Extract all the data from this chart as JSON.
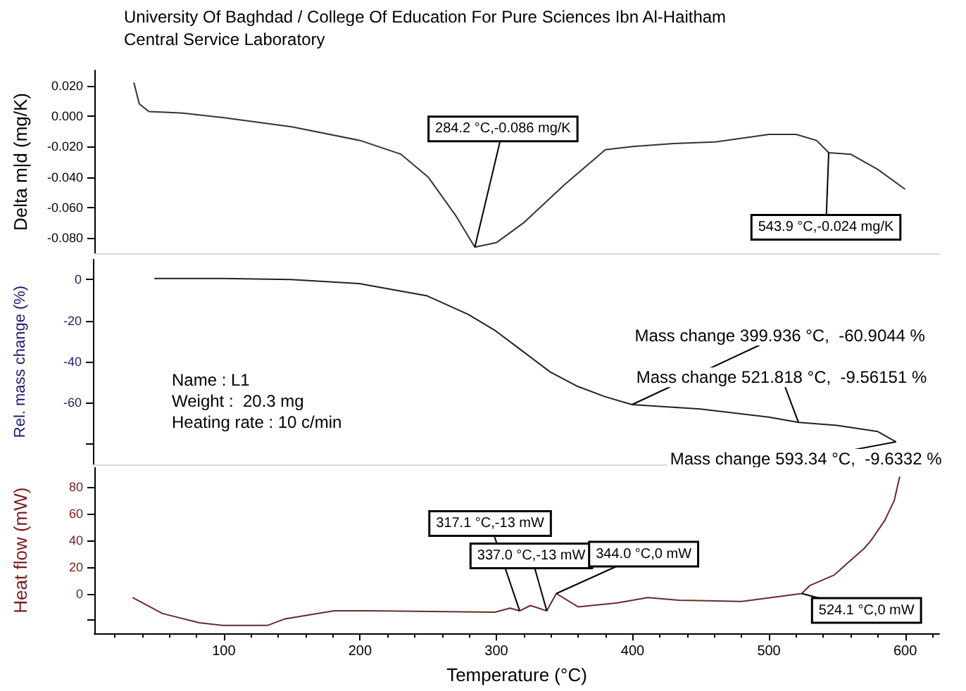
{
  "chart_data": [
    {
      "type": "line",
      "title": "University Of Baghdad / College Of Education For Pure Sciences Ibn Al-Haitham",
      "subtitle": "Central Service Laboratory",
      "ylabel": "Delta m|d (mg/K)",
      "xlim": [
        5,
        625
      ],
      "ylim": [
        -0.09,
        0.03
      ],
      "yticks": [
        {
          "value": 0.02,
          "label": "0.020"
        },
        {
          "value": 0,
          "label": "0.000"
        },
        {
          "value": -0.02,
          "label": "-0.020"
        },
        {
          "value": -0.04,
          "label": "-0.040"
        },
        {
          "value": -0.06,
          "label": "-0.060"
        },
        {
          "value": -0.08,
          "label": "-0.080"
        }
      ],
      "tick_labels": "y",
      "marker": "none",
      "series": [
        {
          "color": "#333333",
          "x": [
            34,
            38,
            45,
            70,
            100,
            150,
            200,
            230,
            250,
            270,
            284.2,
            300,
            320,
            350,
            380,
            400,
            430,
            460,
            500,
            520,
            535,
            543.9,
            560,
            580,
            600
          ],
          "values": [
            0.022,
            0.008,
            0.003,
            0.002,
            -0.001,
            -0.007,
            -0.016,
            -0.025,
            -0.04,
            -0.065,
            -0.086,
            -0.083,
            -0.07,
            -0.045,
            -0.022,
            -0.02,
            -0.018,
            -0.017,
            -0.012,
            -0.012,
            -0.016,
            -0.024,
            -0.025,
            -0.035,
            -0.048
          ]
        }
      ],
      "annotations": [
        {
          "text": "284.2 °C,-0.086 mg/K",
          "x": 284.2,
          "y": -0.086
        },
        {
          "text": "543.9 °C,-0.024 mg/K",
          "x": 543.9,
          "y": -0.024
        }
      ]
    },
    {
      "type": "line",
      "ylabel": "Rel. mass change (%)",
      "xlim": [
        5,
        625
      ],
      "ylim": [
        -90,
        10
      ],
      "yticks": [
        0,
        -20,
        -40,
        -60,
        {
          "value": -80,
          "label": null
        }
      ],
      "tick_labels": "y",
      "marker": "none",
      "series": [
        {
          "color": "#222222",
          "x": [
            50,
            100,
            150,
            200,
            250,
            280,
            300,
            320,
            340,
            360,
            380,
            399.936,
            450,
            500,
            521.818,
            550,
            580,
            593.34
          ],
          "values": [
            0.5,
            0.5,
            0,
            -2,
            -8,
            -17,
            -25,
            -35,
            -45,
            -52,
            -57,
            -60.9,
            -63,
            -67,
            -69.5,
            -71,
            -74,
            -79
          ]
        }
      ],
      "annotations": [
        {
          "text": "Mass change 399.936 °C,  -60.9044 %",
          "x": 399.936,
          "y": -60.9
        },
        {
          "text": "Mass change 521.818 °C,  -9.56151 %",
          "x": 521.818,
          "y": -69.5
        },
        {
          "text": "Mass change 593.34 °C,  -9.6332 %",
          "x": 593.34,
          "y": -79
        },
        "Name : L1",
        "Weight :  20.3 mg",
        "Heating rate : 10 c/min"
      ]
    },
    {
      "type": "line",
      "xlabel": "Temperature (°C)",
      "ylabel": "Heat flow (mW)",
      "xlim": [
        5,
        625
      ],
      "xticks": [
        100,
        200,
        300,
        400,
        500,
        600
      ],
      "ylim": [
        -30,
        95
      ],
      "yticks": [
        {
          "value": -20,
          "label": null
        },
        0,
        20,
        40,
        60,
        80
      ],
      "marker": "none",
      "series": [
        {
          "color": "#6b2a2a",
          "x": [
            33,
            55,
            82,
            99,
            132,
            145,
            181,
            207,
            299,
            310,
            317.1,
            325,
            337,
            344,
            360,
            389,
            411,
            434,
            480,
            524.1,
            530,
            548,
            560,
            570,
            575,
            585,
            592,
            596
          ],
          "values": [
            -3,
            -15,
            -22,
            -24,
            -24,
            -19,
            -13,
            -13,
            -14,
            -11,
            -13,
            -9,
            -13,
            0,
            -10,
            -7,
            -3,
            -5,
            -6,
            0,
            6,
            14,
            25,
            34,
            40,
            55,
            70,
            88
          ]
        }
      ],
      "annotations": [
        {
          "text": "317.1 °C,-13 mW",
          "x": 317.1,
          "y": -13
        },
        {
          "text": "337.0 °C,-13 mW",
          "x": 337,
          "y": -13
        },
        {
          "text": "344.0 °C,0 mW",
          "x": 344,
          "y": 0
        },
        {
          "text": "524.1 °C,0 mW",
          "x": 524.1,
          "y": 0
        }
      ]
    }
  ]
}
